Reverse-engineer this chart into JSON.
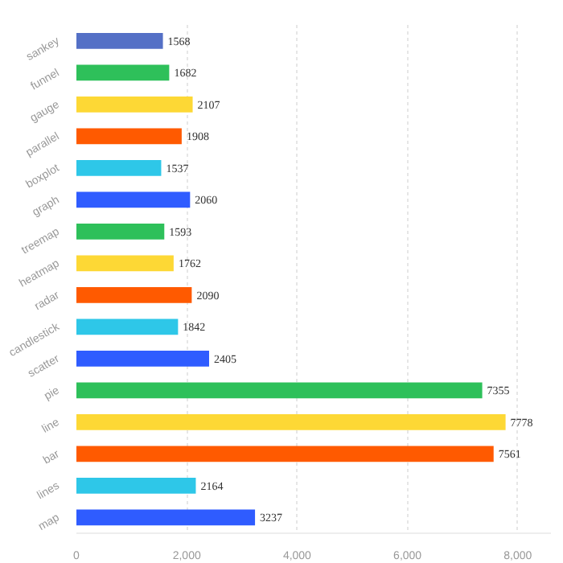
{
  "chart_data": {
    "type": "bar",
    "orientation": "horizontal",
    "categories": [
      "sankey",
      "funnel",
      "gauge",
      "parallel",
      "boxplot",
      "graph",
      "treemap",
      "heatmap",
      "radar",
      "candlestick",
      "scatter",
      "pie",
      "line",
      "bar",
      "lines",
      "map"
    ],
    "values": [
      1568,
      1682,
      2107,
      1908,
      1537,
      2060,
      1593,
      1762,
      2090,
      1842,
      2405,
      7355,
      7778,
      7561,
      2164,
      3237
    ],
    "colors": [
      "#5470c6",
      "#2ec05a",
      "#fdd835",
      "#ff5a00",
      "#2ec7e8",
      "#2f5cff",
      "#2ec05a",
      "#fdd835",
      "#ff5a00",
      "#2ec7e8",
      "#2f5cff",
      "#2ec05a",
      "#fdd835",
      "#ff5a00",
      "#2ec7e8",
      "#2f5cff"
    ],
    "xlim": [
      0,
      8600
    ],
    "xticks": [
      0,
      {
        "value": 2000,
        "label": "2,000"
      },
      {
        "value": 4000,
        "label": "4,000"
      },
      {
        "value": 6000,
        "label": "6,000"
      },
      {
        "value": 8000,
        "label": "8,000"
      }
    ],
    "grid": "x",
    "data_labels": true
  }
}
